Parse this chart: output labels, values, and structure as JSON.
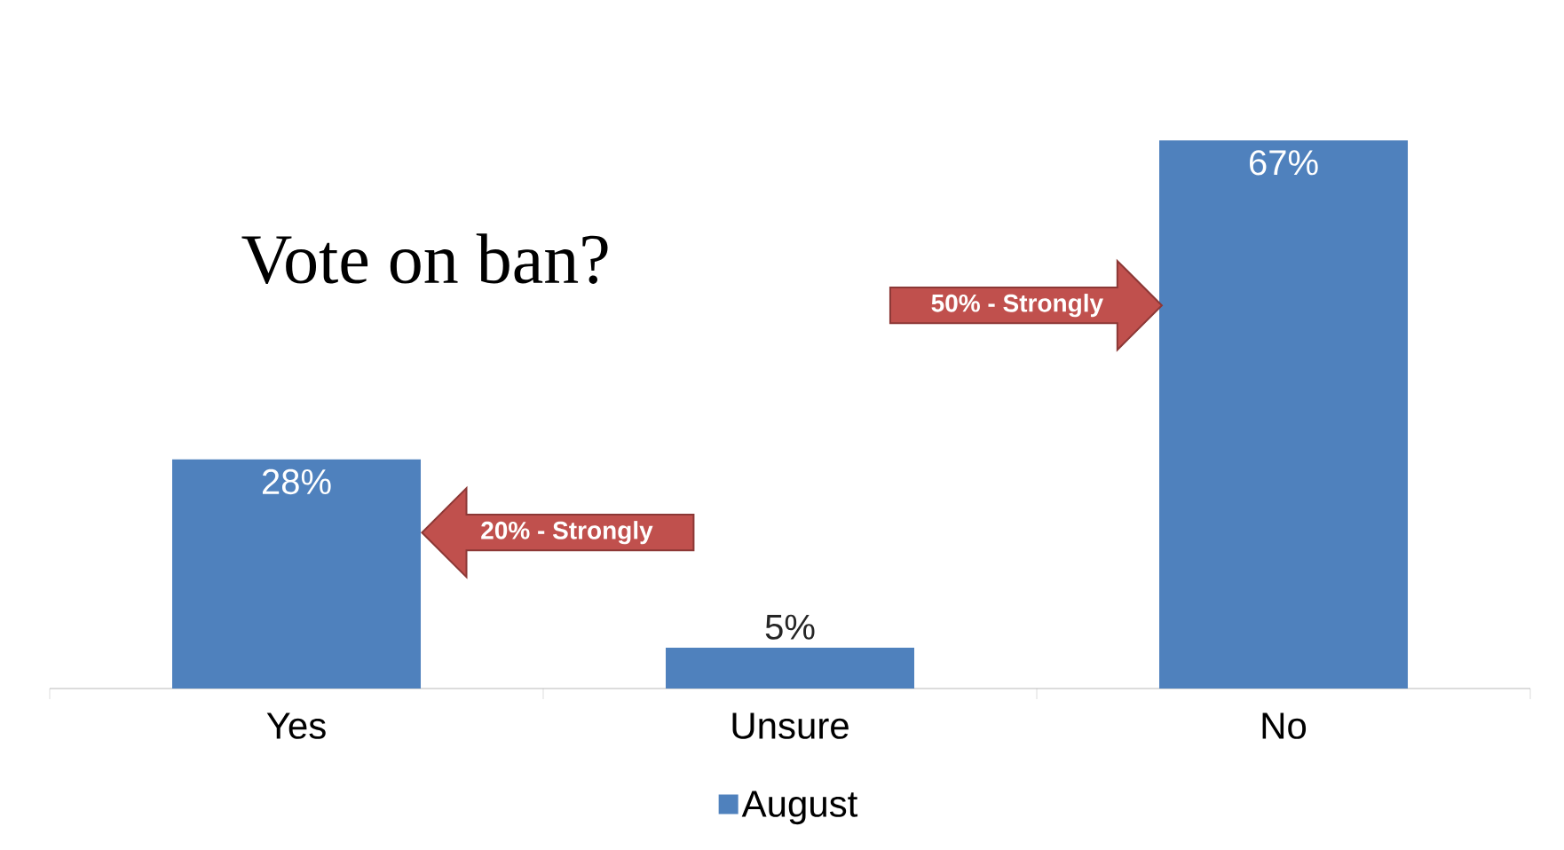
{
  "chart_data": {
    "type": "bar",
    "title": "Vote on ban?",
    "categories": [
      "Yes",
      "Unsure",
      "No"
    ],
    "series": [
      {
        "name": "August",
        "color": "#4f81bd",
        "values": [
          28,
          5,
          67
        ],
        "value_labels": [
          "28%",
          "5%",
          "67%"
        ]
      }
    ],
    "legend": "bottom",
    "annotations": [
      "20% - Strongly",
      "50% - Strongly"
    ]
  }
}
